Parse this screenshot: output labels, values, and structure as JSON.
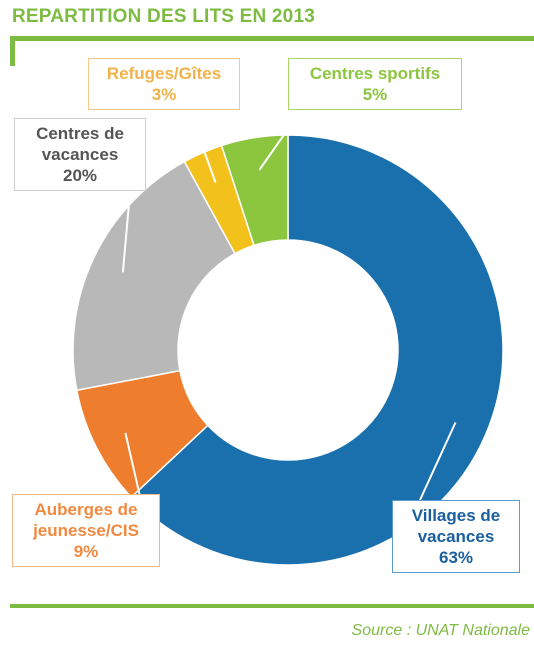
{
  "title": "REPARTITION DES LITS EN 2013",
  "source": "Source : UNAT Nationale",
  "colors": {
    "accent": "#7dbb42",
    "villages": "#1a6fad",
    "auberges": "#ee7d2e",
    "centres_vacances": "#b8b8b8",
    "refuges": "#f2c11b",
    "centres_sportifs": "#8cc63f"
  },
  "labels": {
    "refuges": {
      "line1": "Refuges/Gîtes",
      "line2": "3%"
    },
    "sportifs": {
      "line1": "Centres sportifs",
      "line2": "5%"
    },
    "vacances": {
      "line1": "Centres de",
      "line2": "vacances",
      "line3": "20%"
    },
    "auberges": {
      "line1": "Auberges de",
      "line2": "jeunesse/CIS",
      "line3": "9%"
    },
    "villages": {
      "line1": "Villages de",
      "line2": "vacances",
      "line3": "63%"
    }
  },
  "chart_data": {
    "type": "pie",
    "variant": "donut",
    "title": "REPARTITION DES LITS EN 2013",
    "unit": "%",
    "categories": [
      "Villages de vacances",
      "Auberges de jeunesse/CIS",
      "Centres de vacances",
      "Refuges/Gîtes",
      "Centres sportifs"
    ],
    "values": [
      63,
      9,
      20,
      3,
      5
    ],
    "colors": [
      "#1a6fad",
      "#ee7d2e",
      "#b8b8b8",
      "#f2c11b",
      "#8cc63f"
    ],
    "start": "top, clockwise",
    "legend": "none"
  }
}
